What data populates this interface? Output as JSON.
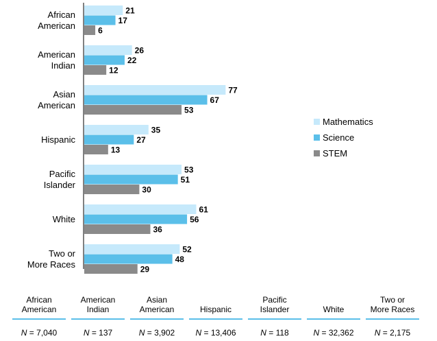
{
  "chart_data": {
    "type": "bar",
    "orientation": "horizontal",
    "categories": [
      [
        "African",
        "American"
      ],
      [
        "American",
        "Indian"
      ],
      [
        "Asian",
        "American"
      ],
      [
        "Hispanic"
      ],
      [
        "Pacific",
        "Islander"
      ],
      [
        "White"
      ],
      [
        "Two or",
        "More Races"
      ]
    ],
    "series": [
      {
        "name": "Mathematics",
        "color": "#c6e9fb",
        "values": [
          21,
          26,
          77,
          35,
          53,
          61,
          52
        ]
      },
      {
        "name": "Science",
        "color": "#5bbfe9",
        "values": [
          17,
          22,
          67,
          27,
          51,
          56,
          48
        ]
      },
      {
        "name": "STEM",
        "color": "#8a8a8a",
        "values": [
          6,
          12,
          53,
          13,
          30,
          36,
          29
        ]
      }
    ],
    "xlim": [
      0,
      100
    ],
    "legend_position": "right",
    "grid": false
  },
  "n_table": {
    "headers": [
      [
        "African",
        "American"
      ],
      [
        "American",
        "Indian"
      ],
      [
        "Asian",
        "American"
      ],
      [
        "Hispanic"
      ],
      [
        "Pacific",
        "Islander"
      ],
      [
        "White"
      ],
      [
        "Two or",
        "More Races"
      ]
    ],
    "n_prefix": "N",
    "values": [
      "= 7,040",
      "= 137",
      "= 3,902",
      "= 13,406",
      "= 118",
      "= 32,362",
      "= 2,175"
    ]
  }
}
